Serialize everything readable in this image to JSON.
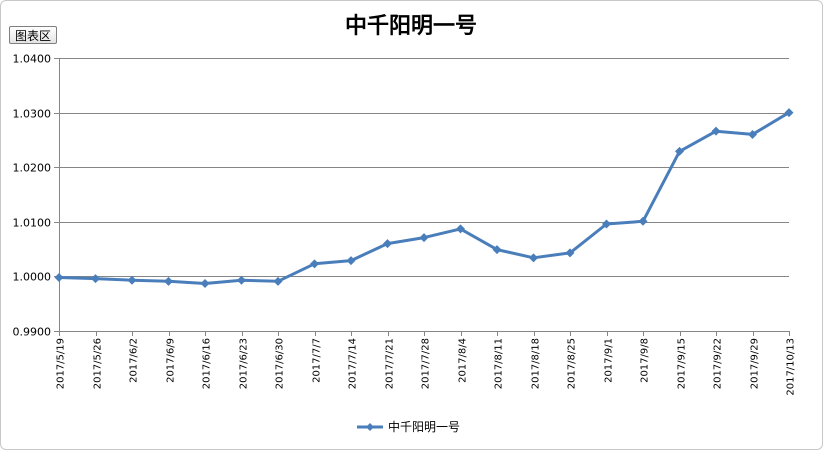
{
  "chart_area_button": "图表区",
  "colors": {
    "series": "#4a7ebb",
    "gridline": "#868686",
    "axis": "#868686"
  },
  "chart_data": {
    "type": "line",
    "title": "中千阳明一号",
    "xlabel": "",
    "ylabel": "",
    "ylim": [
      0.99,
      1.04
    ],
    "y_ticks": [
      "0.9900",
      "1.0000",
      "1.0100",
      "1.0200",
      "1.0300",
      "1.0400"
    ],
    "grid": true,
    "legend_position": "bottom",
    "categories": [
      "2017/5/19",
      "2017/5/26",
      "2017/6/2",
      "2017/6/9",
      "2017/6/16",
      "2017/6/23",
      "2017/6/30",
      "2017/7/7",
      "2017/7/14",
      "2017/7/21",
      "2017/7/28",
      "2017/8/4",
      "2017/8/11",
      "2017/8/18",
      "2017/8/25",
      "2017/9/1",
      "2017/9/8",
      "2017/9/15",
      "2017/9/22",
      "2017/9/29",
      "2017/10/13"
    ],
    "series": [
      {
        "name": "中千阳明一号",
        "marker": "diamond",
        "values": [
          0.9998,
          0.9996,
          0.9993,
          0.9991,
          0.9987,
          0.9993,
          0.9991,
          1.0023,
          1.0029,
          1.006,
          1.0071,
          1.0087,
          1.0049,
          1.0034,
          1.0043,
          1.0096,
          1.0101,
          1.0229,
          1.0266,
          1.026,
          1.03
        ]
      }
    ]
  }
}
